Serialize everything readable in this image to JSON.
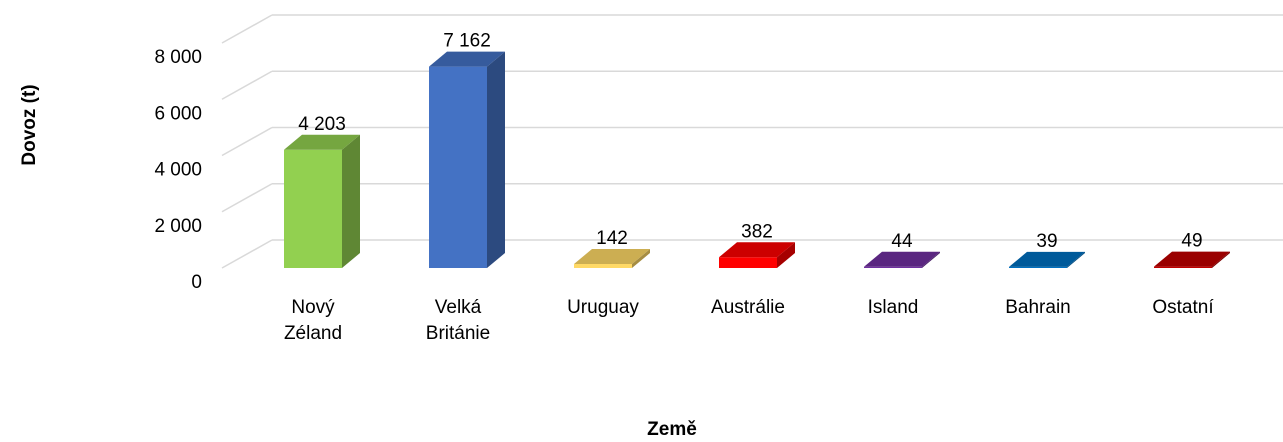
{
  "chart_data": {
    "type": "bar3d",
    "x_label": "Země",
    "y_label": "Dovoz (t)",
    "categories": [
      "Nový\nZéland",
      "Velká\nBritánie",
      "Uruguay",
      "Austrálie",
      "Island",
      "Bahrain",
      "Ostatní"
    ],
    "values": [
      4203,
      7162,
      142,
      382,
      44,
      39,
      49
    ],
    "value_labels": [
      "4 203",
      "7 162",
      "142",
      "382",
      "44",
      "39",
      "49"
    ],
    "colors": [
      "#92d050",
      "#4472c4",
      "#ffd966",
      "#ff0000",
      "#7030a0",
      "#0070c0",
      "#c00000"
    ],
    "ylim": [
      0,
      8000
    ],
    "yticks": [
      0,
      {
        "value": 2000,
        "label": "2 000"
      },
      {
        "value": 4000,
        "label": "4 000"
      },
      {
        "value": 6000,
        "label": "6 000"
      },
      {
        "value": 8000,
        "label": "8 000"
      }
    ],
    "grid": true
  }
}
